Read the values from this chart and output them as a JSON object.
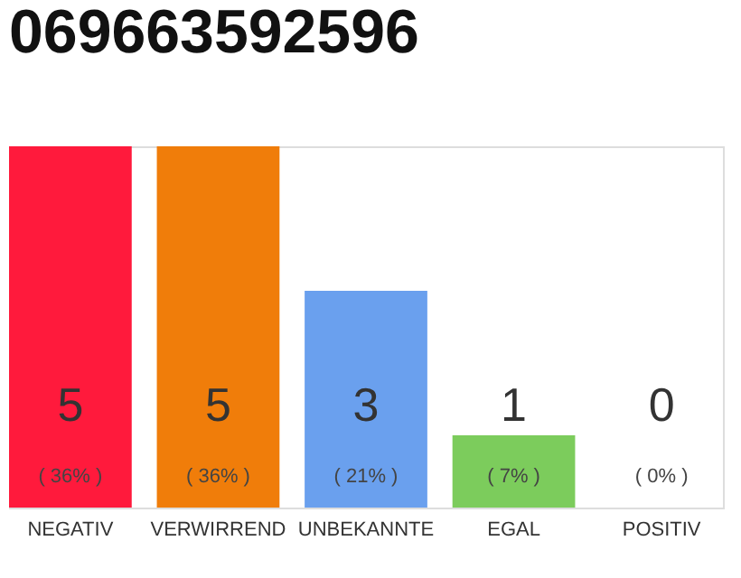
{
  "chart_data": {
    "type": "bar",
    "title": "069663592596",
    "categories": [
      "NEGATIV",
      "VERWIRREND",
      "UNBEKANNTE",
      "EGAL",
      "POSITIV"
    ],
    "values": [
      5,
      5,
      3,
      1,
      0
    ],
    "colors": [
      "#ff1a3c",
      "#f07d0a",
      "#6aa0ee",
      "#7ccc5c",
      "#bbbbbb"
    ],
    "data_labels": true,
    "annotations": [
      "( 36% )",
      "( 36% )",
      "( 21% )",
      "( 7% )",
      "( 0% )"
    ]
  }
}
